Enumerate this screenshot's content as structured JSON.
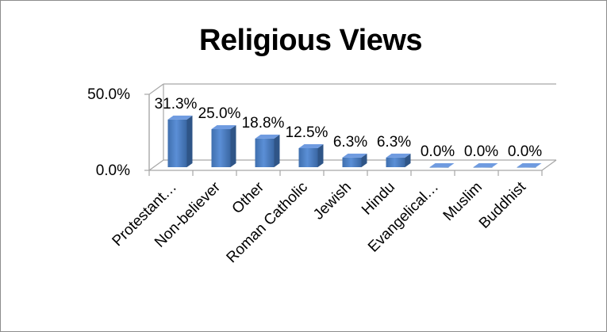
{
  "chart_data": {
    "type": "bar",
    "title": "Religious Views",
    "categories": [
      "Protestant…",
      "Non-believer",
      "Other",
      "Roman Catholic",
      "Jewish",
      "Hindu",
      "Evangelical…",
      "Muslim",
      "Buddhist"
    ],
    "values": [
      31.3,
      25.0,
      18.8,
      12.5,
      6.3,
      6.3,
      0.0,
      0.0,
      0.0
    ],
    "data_labels": [
      "31.3%",
      "25.0%",
      "18.8%",
      "12.5%",
      "6.3%",
      "6.3%",
      "0.0%",
      "0.0%",
      "0.0%"
    ],
    "y_ticks": [
      "0.0%",
      "50.0%"
    ],
    "ylim": [
      0,
      50
    ],
    "xlabel": "",
    "ylabel": "",
    "grid": true,
    "legend": "none",
    "bar_color": "#4f81bd"
  }
}
